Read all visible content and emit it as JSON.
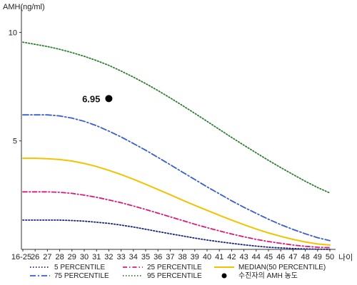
{
  "chart_data": {
    "type": "line",
    "ylabel": "AMH(ng/ml)",
    "xlabel": "나이",
    "categories": [
      "16-25",
      "26",
      "27",
      "28",
      "29",
      "30",
      "31",
      "32",
      "33",
      "34",
      "35",
      "36",
      "37",
      "38",
      "39",
      "40",
      "41",
      "42",
      "43",
      "44",
      "45",
      "46",
      "47",
      "48",
      "49",
      "50"
    ],
    "yticks": [
      5,
      10
    ],
    "ylim": [
      0,
      11
    ],
    "grid": false,
    "legend_position": "bottom",
    "series": [
      {
        "name": "5 PERCENTILE",
        "color": "#1a237e",
        "dash": "dotted",
        "values": [
          1.35,
          1.35,
          1.35,
          1.35,
          1.33,
          1.3,
          1.25,
          1.2,
          1.12,
          1.03,
          0.93,
          0.82,
          0.72,
          0.62,
          0.52,
          0.43,
          0.35,
          0.28,
          0.21,
          0.15,
          0.1,
          0.07,
          0.04,
          0.02,
          0.01,
          0.0
        ]
      },
      {
        "name": "25 PERCENTILE",
        "color": "#d81b7a",
        "dash": "dashdot",
        "values": [
          2.65,
          2.65,
          2.65,
          2.63,
          2.58,
          2.5,
          2.4,
          2.28,
          2.15,
          2.0,
          1.84,
          1.67,
          1.5,
          1.33,
          1.16,
          1.0,
          0.85,
          0.71,
          0.58,
          0.46,
          0.36,
          0.28,
          0.2,
          0.14,
          0.1,
          0.08
        ]
      },
      {
        "name": "MEDIAN(50 PERCENTILE)",
        "color": "#f2c300",
        "dash": "solid",
        "values": [
          4.2,
          4.2,
          4.18,
          4.14,
          4.07,
          3.96,
          3.82,
          3.64,
          3.45,
          3.23,
          3.0,
          2.76,
          2.52,
          2.27,
          2.03,
          1.8,
          1.57,
          1.35,
          1.14,
          0.94,
          0.76,
          0.6,
          0.46,
          0.34,
          0.25,
          0.2
        ]
      },
      {
        "name": "75 PERCENTILE",
        "color": "#3a5fcd",
        "dash": "longdashdot",
        "values": [
          6.2,
          6.2,
          6.2,
          6.15,
          6.05,
          5.9,
          5.7,
          5.45,
          5.18,
          4.88,
          4.57,
          4.24,
          3.9,
          3.56,
          3.22,
          2.88,
          2.56,
          2.24,
          1.94,
          1.66,
          1.39,
          1.14,
          0.92,
          0.72,
          0.54,
          0.4
        ]
      },
      {
        "name": "95 PERCENTILE",
        "color": "#2e7d32",
        "dash": "dotted",
        "values": [
          9.55,
          9.45,
          9.35,
          9.22,
          9.07,
          8.9,
          8.7,
          8.48,
          8.22,
          7.94,
          7.64,
          7.32,
          6.98,
          6.63,
          6.27,
          5.9,
          5.53,
          5.16,
          4.8,
          4.45,
          4.1,
          3.77,
          3.45,
          3.14,
          2.85,
          2.6
        ]
      }
    ],
    "points": [
      {
        "name": "수진자의 AMH 농도",
        "x": "32",
        "y": 6.95,
        "label": "6.95",
        "color": "#000000"
      }
    ],
    "legend": [
      {
        "name": "5 PERCENTILE",
        "color": "#1a237e",
        "dash": "dotted",
        "kind": "line"
      },
      {
        "name": "25 PERCENTILE",
        "color": "#d81b7a",
        "dash": "dashdot",
        "kind": "line"
      },
      {
        "name": "MEDIAN(50 PERCENTILE)",
        "color": "#f2c300",
        "dash": "solid",
        "kind": "line"
      },
      {
        "name": "75 PERCENTILE",
        "color": "#3a5fcd",
        "dash": "longdashdot",
        "kind": "line"
      },
      {
        "name": "95 PERCENTILE",
        "color": "#2e7d32",
        "dash": "dotted",
        "kind": "line"
      },
      {
        "name": "수진자의 AMH 농도",
        "color": "#000000",
        "kind": "point"
      }
    ]
  }
}
